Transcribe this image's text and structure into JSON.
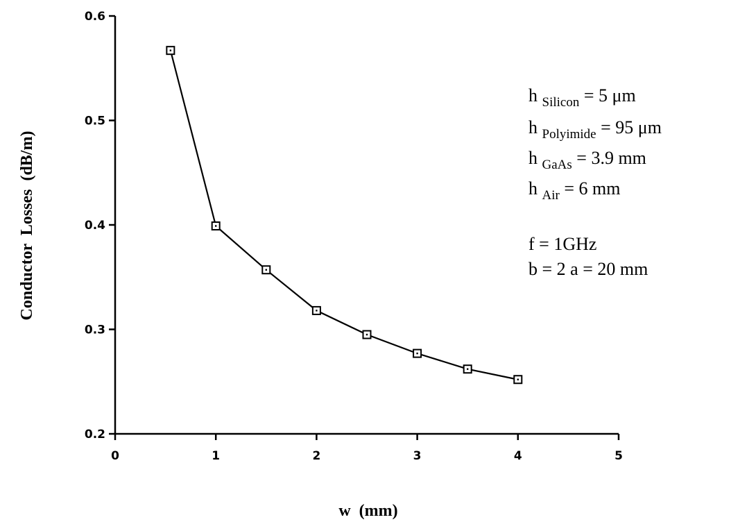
{
  "chart_data": {
    "type": "line",
    "title": "",
    "xlabel": "w  (mm)",
    "ylabel": "Conductor  Losses  (dB/m)",
    "xlim": [
      0,
      5
    ],
    "ylim": [
      0.2,
      0.6
    ],
    "x_ticks": [
      "0",
      "1",
      "2",
      "3",
      "4",
      "5"
    ],
    "y_ticks": [
      "0.2",
      "0.3",
      "0.4",
      "0.5",
      "0.6"
    ],
    "grid": false,
    "legend": "none",
    "marker": "open-square",
    "series": [
      {
        "x": [
          0.55,
          1.0,
          1.5,
          2.0,
          2.5,
          3.0,
          3.5,
          4.0
        ],
        "y": [
          0.567,
          0.399,
          0.357,
          0.318,
          0.295,
          0.277,
          0.262,
          0.252
        ]
      }
    ],
    "annotations": {
      "params": [
        {
          "base": "h ",
          "sub": "Silicon",
          "rest": " = 5 μm"
        },
        {
          "base": "h ",
          "sub": "Polyimide",
          "rest": " = 95 μm"
        },
        {
          "base": "h ",
          "sub": "GaAs",
          "rest": " = 3.9 mm"
        },
        {
          "base": "h ",
          "sub": "Air",
          "rest": " = 6 mm"
        }
      ],
      "freq": "f = 1GHz",
      "dims": "b = 2 a = 20 mm"
    }
  }
}
